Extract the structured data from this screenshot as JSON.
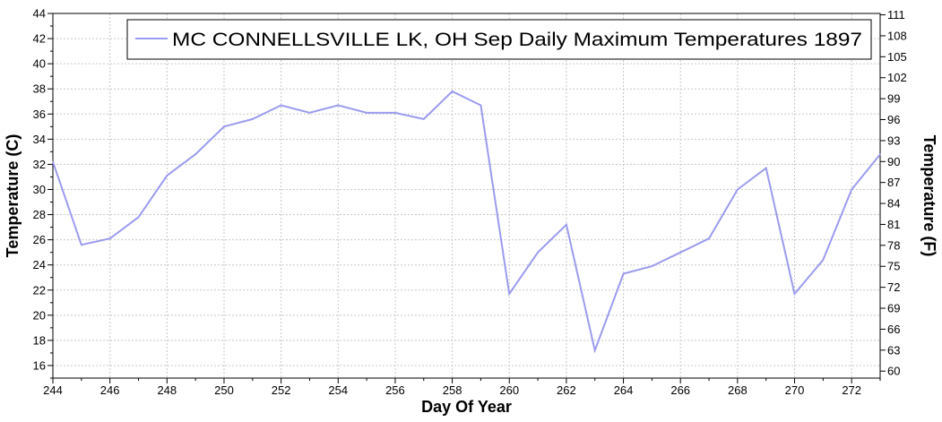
{
  "chart_data": {
    "type": "line",
    "legend_label": "MC CONNELLSVILLE LK, OH  Sep  Daily Maximum Temperatures 1897",
    "legend_position": "top-right",
    "xlabel": "Day Of Year",
    "ylabel_left": "Temperature (C)",
    "ylabel_right": "Temperature (F)",
    "xlim": [
      244,
      273
    ],
    "ylim": [
      15,
      44
    ],
    "grid": true,
    "line_color": "#9b9bef",
    "x_ticks": [
      "244",
      "246",
      "248",
      "250",
      "252",
      "254",
      "256",
      "258",
      "260",
      "262",
      "264",
      "266",
      "268",
      "270",
      "272"
    ],
    "y_ticks_left": [
      "16",
      "18",
      "20",
      "22",
      "24",
      "26",
      "28",
      "30",
      "32",
      "34",
      "36",
      "38",
      "40",
      "42",
      "44"
    ],
    "y_ticks_right": [
      "60",
      "63",
      "66",
      "69",
      "72",
      "75",
      "78",
      "81",
      "84",
      "87",
      "90",
      "93",
      "96",
      "99",
      "102",
      "105",
      "108",
      "111"
    ],
    "x": [
      244,
      245,
      246,
      247,
      248,
      249,
      250,
      251,
      252,
      253,
      254,
      255,
      256,
      257,
      258,
      259,
      260,
      261,
      262,
      263,
      264,
      265,
      266,
      267,
      268,
      269,
      270,
      271,
      272,
      273
    ],
    "values": [
      32.2,
      25.6,
      26.1,
      27.8,
      31.1,
      32.8,
      35.0,
      35.6,
      36.7,
      36.1,
      36.7,
      36.1,
      36.1,
      35.6,
      37.8,
      36.7,
      21.7,
      25.0,
      27.2,
      17.2,
      23.3,
      23.9,
      25.0,
      26.1,
      30.0,
      31.7,
      21.7,
      24.4,
      30.0,
      32.8
    ]
  }
}
